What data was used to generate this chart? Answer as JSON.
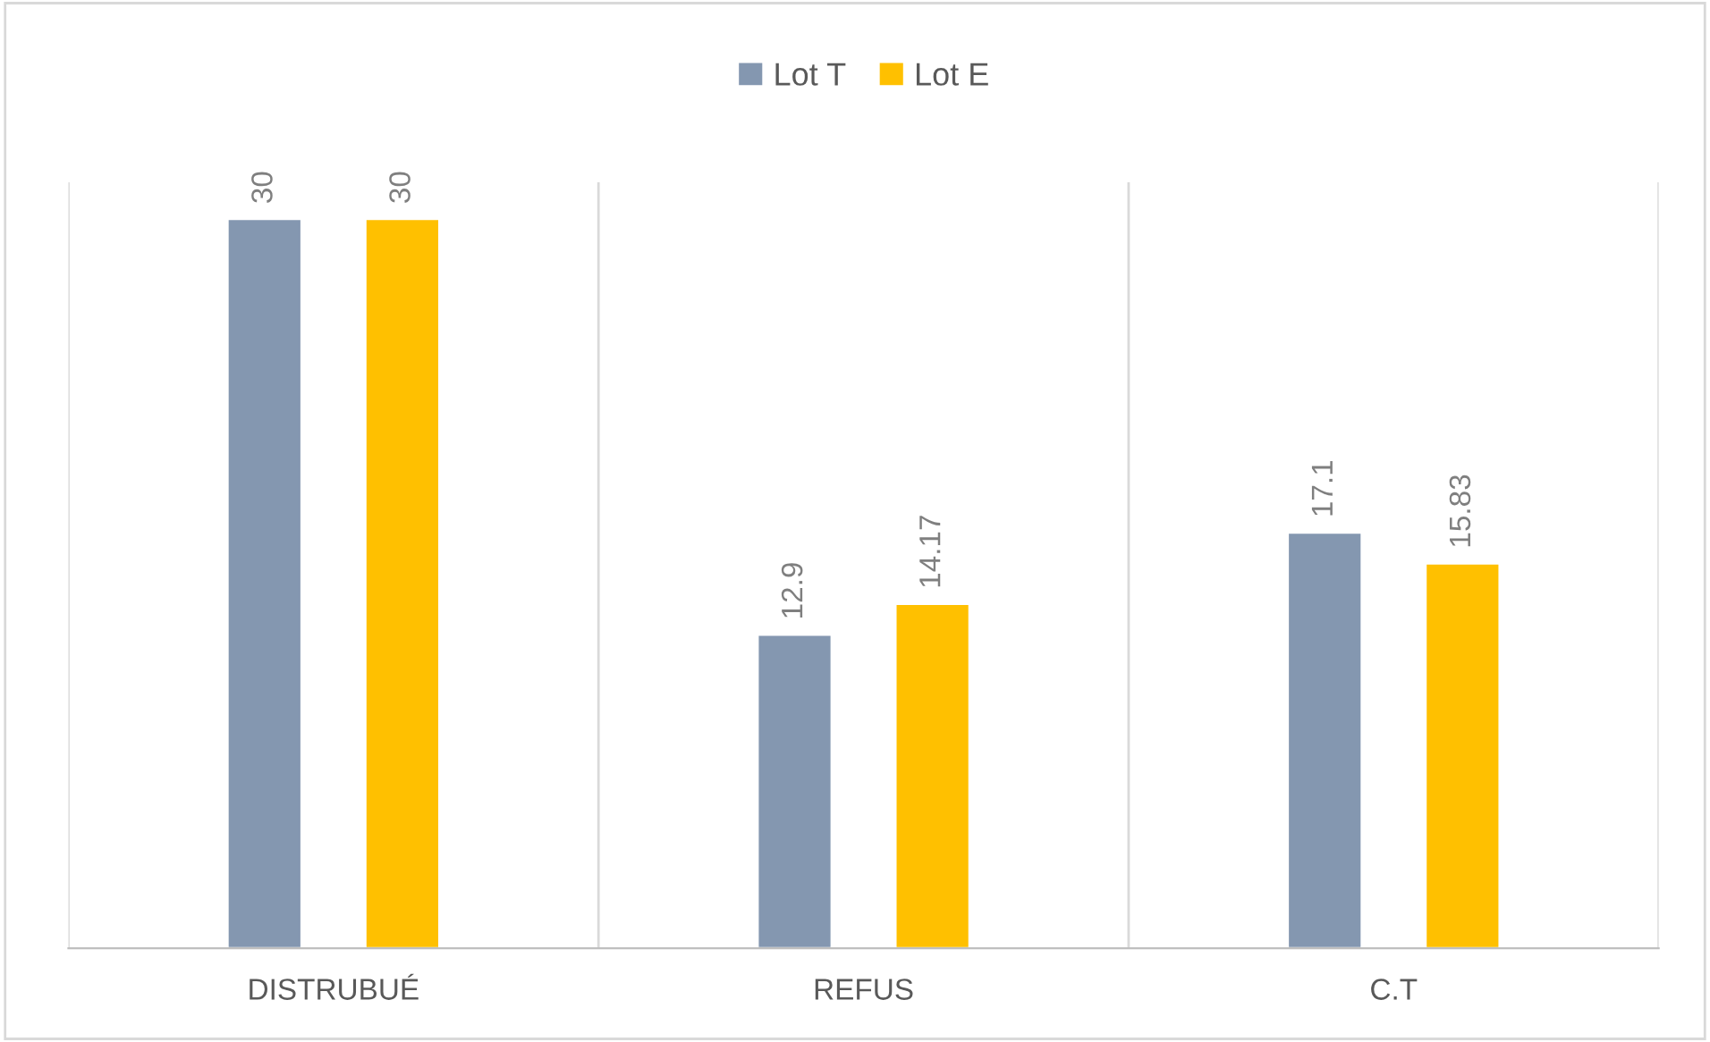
{
  "chart_data": {
    "type": "bar",
    "categories": [
      "DISTRUBUÉ",
      "REFUS",
      "C.T"
    ],
    "series": [
      {
        "name": "Lot T",
        "color": "#8497b0",
        "values": [
          30,
          12.9,
          17.1
        ]
      },
      {
        "name": "Lot E",
        "color": "#ffc000",
        "values": [
          30,
          14.17,
          15.83
        ]
      }
    ],
    "data_labels": true,
    "legend": "top",
    "grid": "x"
  }
}
